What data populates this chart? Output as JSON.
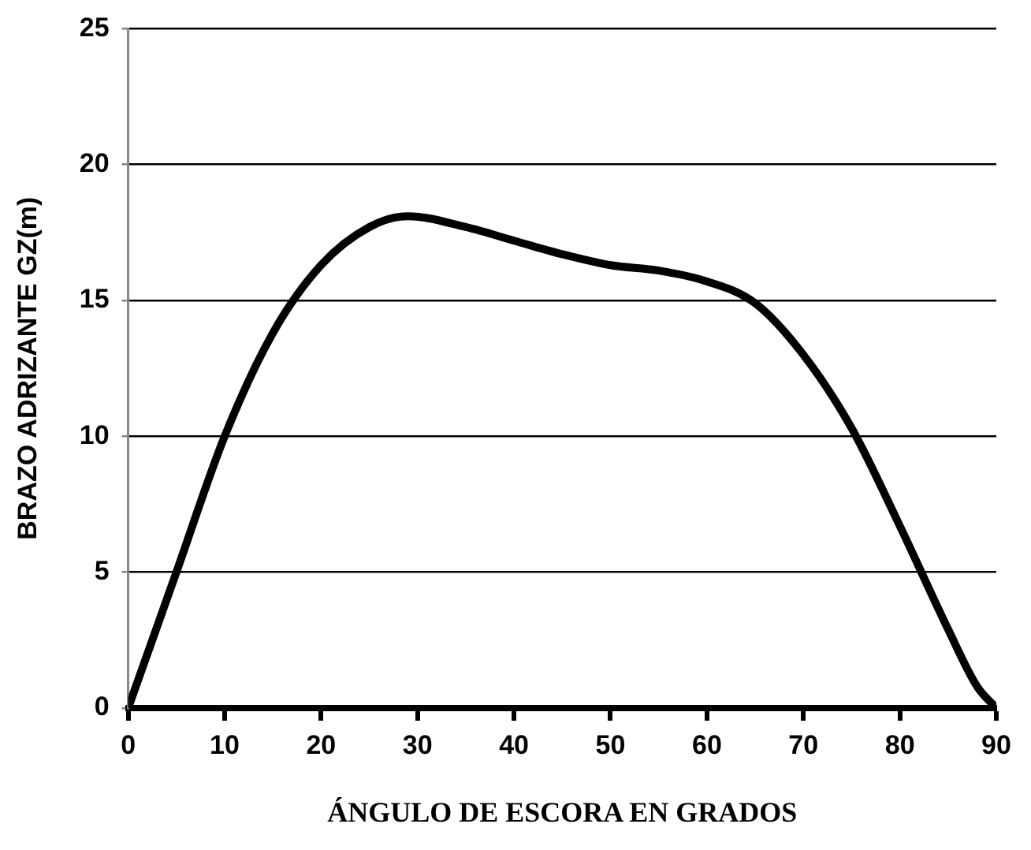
{
  "chart_data": {
    "type": "line",
    "xlabel": "ÁNGULO DE ESCORA EN GRADOS",
    "ylabel": "BRAZO ADRIZANTE GZ(m)",
    "x": [
      0,
      5,
      10,
      15,
      20,
      25,
      29,
      35,
      40,
      45,
      50,
      55,
      60,
      65,
      70,
      75,
      80,
      85,
      88,
      90
    ],
    "series": [
      {
        "color": "#000000",
        "values": [
          0,
          5,
          10,
          13.8,
          16.3,
          17.7,
          18.1,
          17.7,
          17.2,
          16.7,
          16.3,
          16.1,
          15.7,
          14.9,
          13,
          10.3,
          6.7,
          2.9,
          0.8,
          0
        ]
      }
    ],
    "xlim": [
      0,
      90
    ],
    "xticks": [
      0,
      10,
      20,
      30,
      40,
      50,
      60,
      70,
      80,
      90
    ],
    "ylim": [
      0,
      25
    ],
    "yticks": [
      0,
      5,
      10,
      15,
      20,
      25
    ],
    "grid": "y",
    "legend": false,
    "marker": "none",
    "line_style": "solid"
  }
}
